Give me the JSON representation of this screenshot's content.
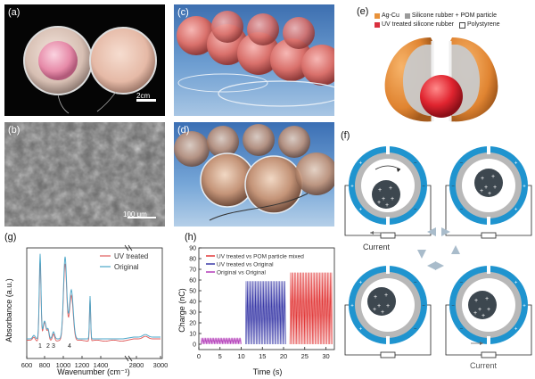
{
  "figure": {
    "panels": {
      "a": {
        "label": "(a)",
        "scale_bar": "2cm"
      },
      "b": {
        "label": "(b)",
        "scale_bar": "100 μm"
      },
      "c": {
        "label": "(c)"
      },
      "d": {
        "label": "(d)"
      },
      "e": {
        "label": "(e)",
        "legend": [
          {
            "text": "Ag-Cu",
            "color": "#e8923a"
          },
          {
            "text": "Silicone rubber + POM particle",
            "color": "#9a9a9a"
          },
          {
            "text": "UV treated silicone rubber",
            "color": "#d9303f"
          },
          {
            "text": "Polystyrene",
            "color": "#ffffff"
          }
        ]
      },
      "f": {
        "label": "(f)",
        "current_label": "Current"
      },
      "g": {
        "label": "(g)"
      },
      "h": {
        "label": "(h)"
      }
    },
    "colors": {
      "blue": "#1f94cf",
      "gray": "#b8b8b8",
      "dark_ball": "#3d474f",
      "red": "#e23a3a"
    }
  },
  "chart_data": [
    {
      "type": "line",
      "panel": "g",
      "xlabel": "Wavenumber (cm⁻¹)",
      "ylabel": "Absorbance (a.u.)",
      "xticks": [
        "600",
        "800",
        "1000",
        "1200",
        "1400",
        "2800",
        "3000"
      ],
      "axis_break": true,
      "peak_labels": [
        "1",
        "2",
        "3",
        "4"
      ],
      "series": [
        {
          "name": "UV treated",
          "color": "#e05b5b"
        },
        {
          "name": "Original",
          "color": "#4aa6c8"
        }
      ]
    },
    {
      "type": "line",
      "panel": "h",
      "xlabel": "Time (s)",
      "ylabel": "Charge (nC)",
      "xlim": [
        0,
        32
      ],
      "ylim": [
        -5,
        90
      ],
      "xticks": [
        0,
        5,
        10,
        15,
        20,
        25,
        30
      ],
      "yticks": [
        0,
        10,
        20,
        30,
        40,
        50,
        60,
        70,
        80,
        90
      ],
      "series": [
        {
          "name": "UV treated vs POM particle mixed",
          "color": "#e23a3a",
          "x_range": [
            21.5,
            31.5
          ],
          "min": 0,
          "max": 67
        },
        {
          "name": "UV treated vs Original",
          "color": "#3a3aa8",
          "x_range": [
            11,
            20.5
          ],
          "min": 0,
          "max": 59
        },
        {
          "name": "Original vs Original",
          "color": "#b23ab8",
          "x_range": [
            0.5,
            10
          ],
          "min": 0,
          "max": 6
        }
      ]
    }
  ]
}
